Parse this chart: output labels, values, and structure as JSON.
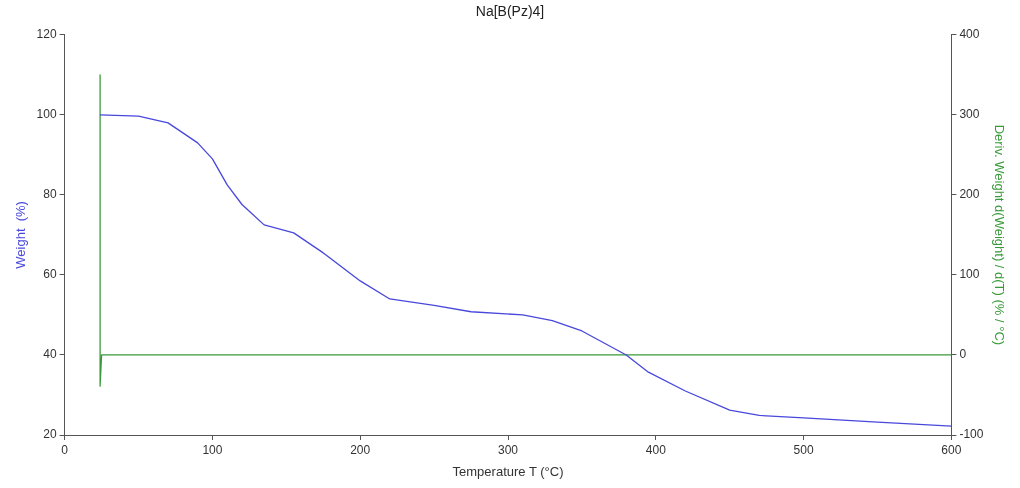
{
  "chart_data": {
    "type": "line",
    "title": "Na[B(Pz)4]",
    "xlabel": "Temperature T (°C)",
    "ylabel": "Weight  (%)",
    "y2label": "Deriv. Weight d(Weight) / d(T) (% / °C)",
    "xlim": [
      0,
      600
    ],
    "xticks": [
      0,
      100,
      200,
      300,
      400,
      500,
      600
    ],
    "ylim": [
      20,
      120
    ],
    "yticks": [
      20,
      40,
      60,
      80,
      100,
      120
    ],
    "y2lim": [
      -100,
      400
    ],
    "y2ticks": [
      -100,
      0,
      100,
      200,
      300,
      400
    ],
    "grid": false,
    "legend": false,
    "marker": "none",
    "line_style": "solid",
    "series": [
      {
        "color": "#4848dc",
        "x": [
          24,
          50,
          70,
          90,
          100,
          110,
          120,
          135,
          155,
          175,
          200,
          220,
          250,
          275,
          310,
          330,
          350,
          365,
          380,
          395,
          420,
          450,
          470,
          500,
          550,
          600
        ],
        "values": [
          100,
          99.7,
          98,
          93,
          89,
          82.5,
          77.6,
          72.5,
          70.5,
          65.5,
          58.5,
          54,
          52.4,
          50.8,
          50,
          48.6,
          46,
          43,
          40,
          35.7,
          31,
          26.2,
          24.9,
          24.3,
          23.2,
          22.2
        ]
      },
      {
        "color": "#3a9a3a",
        "axis": "y2",
        "x": [
          24,
          24,
          25,
          600
        ],
        "values": [
          350,
          -39,
          0,
          0
        ]
      }
    ]
  }
}
